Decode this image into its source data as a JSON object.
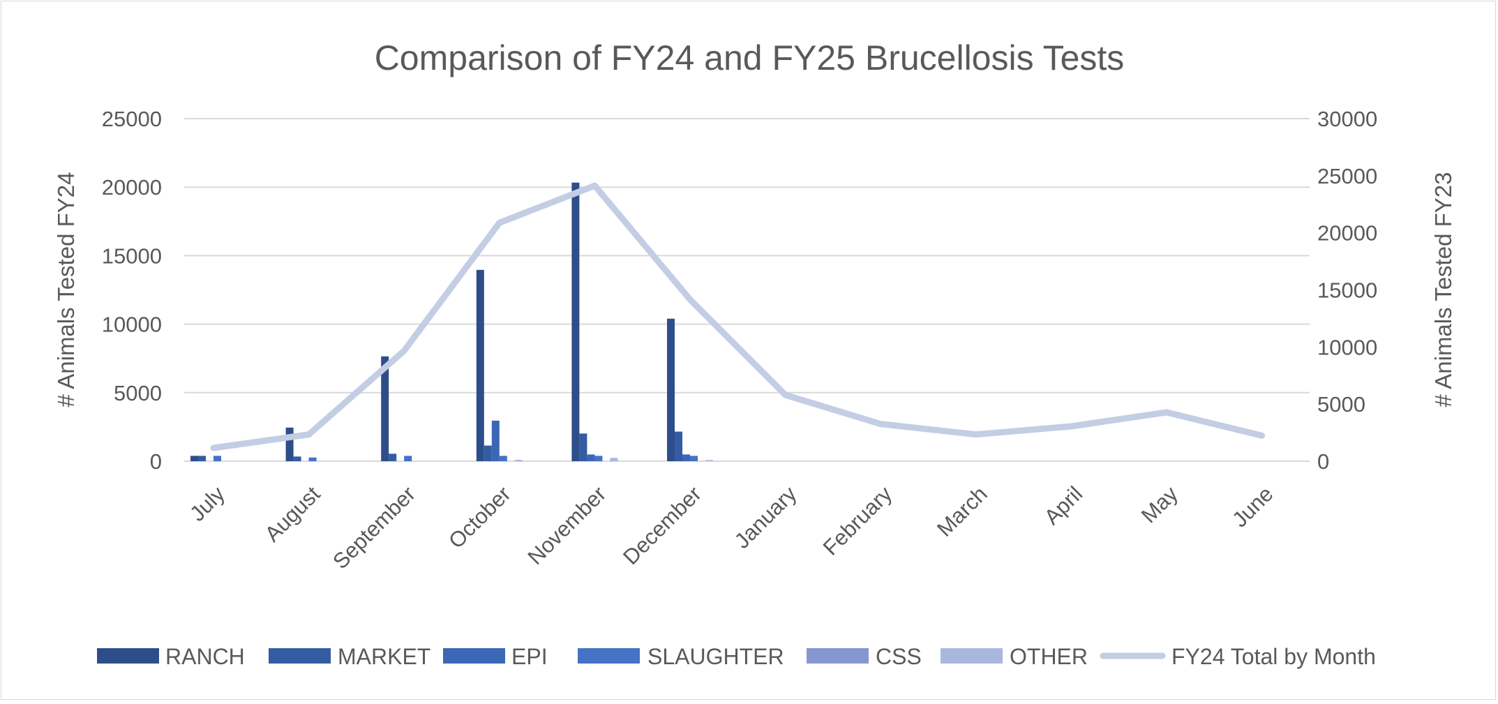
{
  "chart_data": {
    "type": "bar+line",
    "title": "Comparison of FY24 and FY25 Brucellosis Tests",
    "ylabel": "# Animals Tested FY24",
    "ylabel_right": "# Animals Tested FY23",
    "ylim": [
      0,
      25000
    ],
    "ylim_right": [
      0,
      30000
    ],
    "yticks": [
      0,
      5000,
      10000,
      15000,
      20000,
      25000
    ],
    "yticks_right": [
      0,
      5000,
      10000,
      15000,
      20000,
      25000,
      30000
    ],
    "grid": true,
    "legend_position": "bottom",
    "categories": [
      "July",
      "August",
      "September",
      "October",
      "November",
      "December",
      "January",
      "February",
      "March",
      "April",
      "May",
      "June"
    ],
    "series": [
      {
        "name": "RANCH",
        "type": "bar",
        "axis": "left",
        "color": "#2e4e8a",
        "values": [
          390,
          2450,
          7650,
          13960,
          20330,
          10400,
          0,
          0,
          0,
          0,
          0,
          0
        ]
      },
      {
        "name": "MARKET",
        "type": "bar",
        "axis": "left",
        "color": "#345ca3",
        "values": [
          390,
          340,
          545,
          1140,
          2020,
          2160,
          0,
          0,
          0,
          0,
          0,
          0
        ]
      },
      {
        "name": "EPI",
        "type": "bar",
        "axis": "left",
        "color": "#3b67b6",
        "values": [
          0,
          0,
          0,
          2960,
          490,
          490,
          0,
          0,
          0,
          0,
          0,
          0
        ]
      },
      {
        "name": "SLAUGHTER",
        "type": "bar",
        "axis": "left",
        "color": "#4472c4",
        "values": [
          390,
          270,
          390,
          390,
          390,
          390,
          0,
          0,
          0,
          0,
          0,
          0
        ]
      },
      {
        "name": "CSS",
        "type": "bar",
        "axis": "left",
        "color": "#8497d0",
        "values": [
          0,
          0,
          0,
          0,
          0,
          0,
          0,
          0,
          0,
          0,
          0,
          0
        ]
      },
      {
        "name": "OTHER",
        "type": "bar",
        "axis": "left",
        "color": "#a9b7de",
        "values": [
          0,
          0,
          0,
          100,
          240,
          85,
          0,
          0,
          0,
          0,
          0,
          0
        ]
      },
      {
        "name": "FY24 Total by Month",
        "type": "line",
        "axis": "right",
        "color": "#c3cde4",
        "values": [
          1160,
          2340,
          9670,
          20880,
          24130,
          14160,
          5800,
          3260,
          2340,
          3055,
          4280,
          2240
        ]
      }
    ]
  }
}
